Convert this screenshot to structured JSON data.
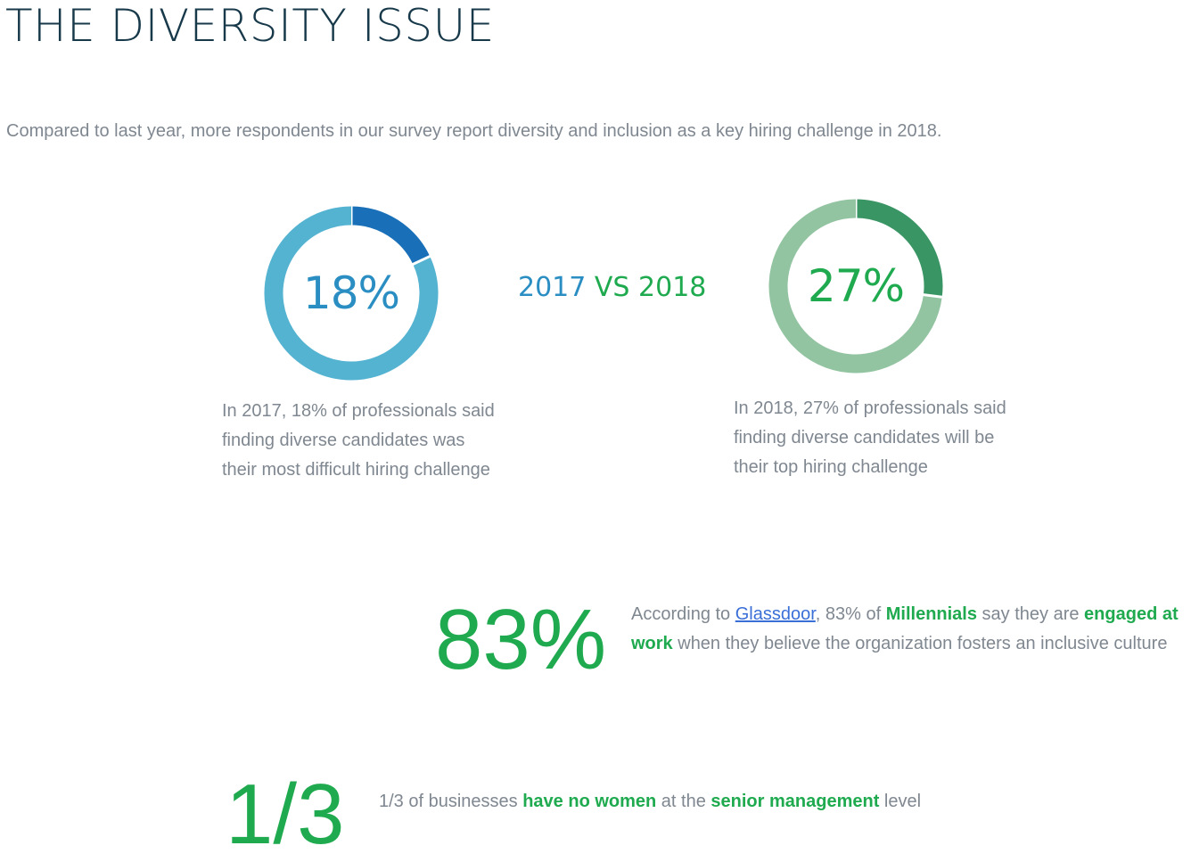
{
  "title": "THE DIVERSITY ISSUE",
  "intro": "Compared to last year, more respondents in our survey report diversity and inclusion as a key hiring challenge in 2018.",
  "comparison": {
    "year1": "2017",
    "vs": "VS",
    "year2": "2018"
  },
  "chart_data": [
    {
      "type": "pie",
      "variant": "donut",
      "label": "18%",
      "values": [
        18,
        82
      ],
      "colors": [
        "#1a70b8",
        "#55b3d2"
      ]
    },
    {
      "type": "pie",
      "variant": "donut",
      "label": "27%",
      "values": [
        27,
        73
      ],
      "colors": [
        "#3a9565",
        "#93c4a1"
      ]
    }
  ],
  "captions": {
    "c2017": "In 2017, 18% of professionals said finding diverse candidates was their most difficult hiring challenge",
    "c2018": "In 2018, 27% of professionals said finding diverse candidates will be their top hiring challenge"
  },
  "stat83": {
    "value": "83%",
    "t1": "According to ",
    "link": "Glassdoor",
    "t2": ", 83% of ",
    "h1": "Millennials",
    "t3": " say they are ",
    "h2": "engaged at work",
    "t4": " when they believe the organization fosters an inclusive culture"
  },
  "stat13": {
    "value": "1/3",
    "t1": "1/3 of businesses ",
    "h1": "have no women",
    "t2": " at the ",
    "h2": "senior management",
    "t3": " level"
  }
}
